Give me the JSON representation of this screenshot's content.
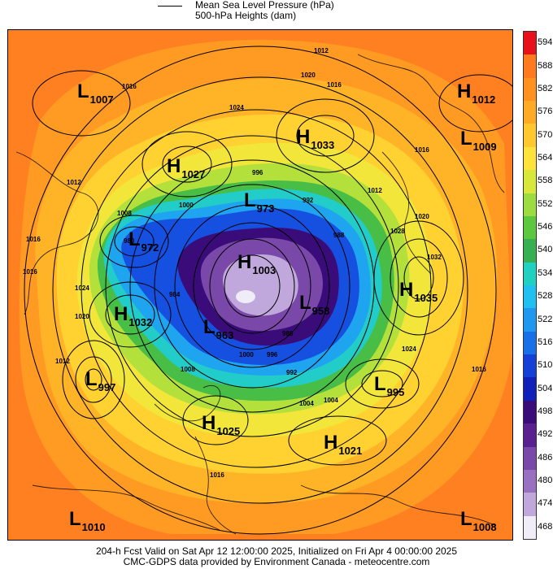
{
  "legend": {
    "line1": "Mean Sea Level Pressure (hPa)",
    "line2": "500-hPa Heights (dam)"
  },
  "colorbar": {
    "labels": [
      "594",
      "588",
      "582",
      "576",
      "570",
      "564",
      "558",
      "552",
      "546",
      "540",
      "534",
      "528",
      "522",
      "516",
      "510",
      "504",
      "498",
      "492",
      "486",
      "480",
      "474",
      "468"
    ],
    "colors": [
      "#e8101a",
      "#ff7a1c",
      "#ff9120",
      "#ffaa24",
      "#ffc82e",
      "#ffe23a",
      "#d8e83a",
      "#9cdc40",
      "#5cc840",
      "#36b050",
      "#20d0c0",
      "#20c0f0",
      "#2098f0",
      "#1870e8",
      "#1440d8",
      "#1020b8",
      "#3a0c7a",
      "#5a2090",
      "#7a48a8",
      "#9a70c0",
      "#c0a8dc",
      "#f0ecf8"
    ]
  },
  "systems": [
    {
      "sym": "L",
      "val": "1007"
    },
    {
      "sym": "H",
      "val": "1012"
    },
    {
      "sym": "L",
      "val": "1009"
    },
    {
      "sym": "H",
      "val": "1033"
    },
    {
      "sym": "H",
      "val": "1027"
    },
    {
      "sym": "L",
      "val": "973"
    },
    {
      "sym": "L",
      "val": "972"
    },
    {
      "sym": "H",
      "val": "1003"
    },
    {
      "sym": "H",
      "val": "1035"
    },
    {
      "sym": "H",
      "val": "1032"
    },
    {
      "sym": "L",
      "val": "958"
    },
    {
      "sym": "L",
      "val": "963"
    },
    {
      "sym": "L",
      "val": "997"
    },
    {
      "sym": "L",
      "val": "995"
    },
    {
      "sym": "H",
      "val": "1025"
    },
    {
      "sym": "H",
      "val": "1021"
    },
    {
      "sym": "L",
      "val": "1010"
    },
    {
      "sym": "L",
      "val": "1008"
    }
  ],
  "isobar_labels": [
    "1012",
    "1016",
    "1020",
    "1024",
    "1016",
    "1012",
    "1016",
    "1016",
    "1020",
    "1032",
    "1028",
    "1024",
    "1016",
    "1012",
    "1012",
    "1016",
    "1024",
    "1020",
    "1008",
    "1000",
    "996",
    "992",
    "988",
    "984",
    "980",
    "1004",
    "1000",
    "1004",
    "1008",
    "1016",
    "992",
    "996",
    "988"
  ],
  "footer": {
    "line1": "204-h Fcst Valid on Sat Apr 12 12:00:00 2025, Initialized on Fri Apr  4 00:00:00 2025",
    "line2": "CMC-GDPS data provided by Environment Canada - meteocentre.com"
  }
}
